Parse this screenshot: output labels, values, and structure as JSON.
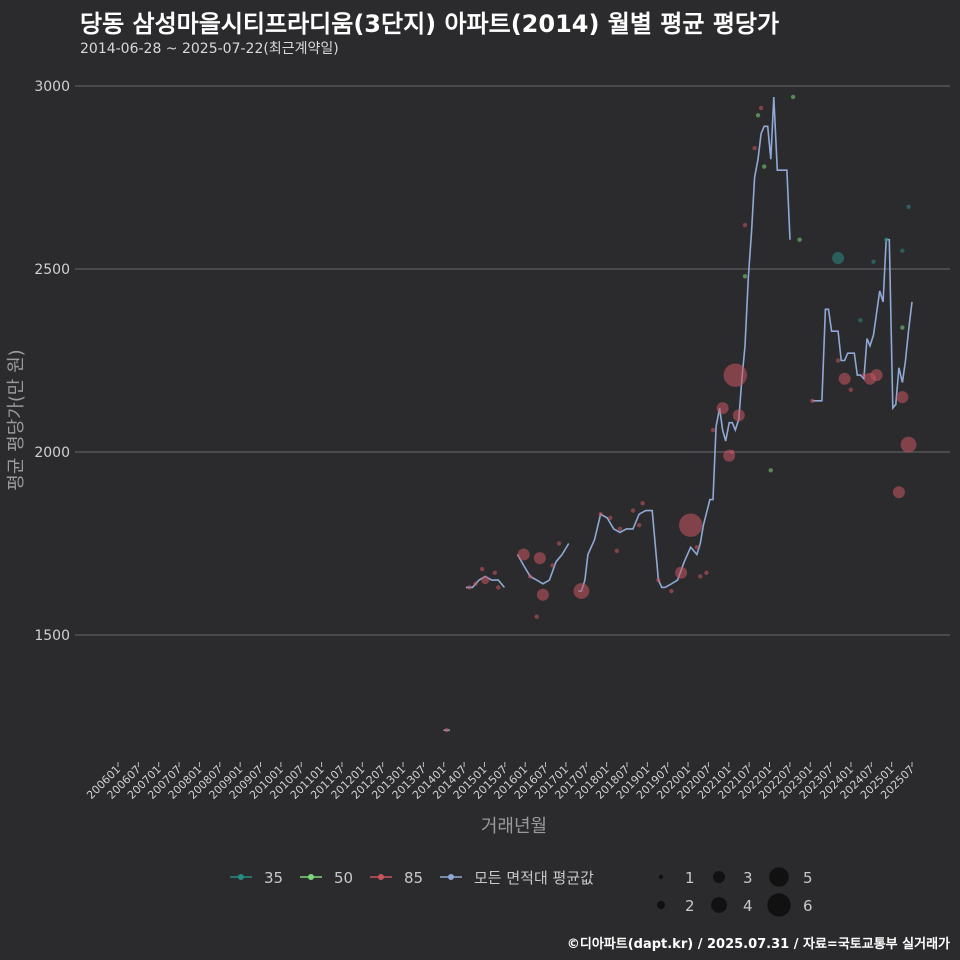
{
  "title": "당동 삼성마을시티프라디움(3단지) 아파트(2014) 월별 평균 평당가",
  "subtitle": "2014-06-28 ~ 2025-07-22(최근계약일)",
  "credit": "©디아파트(dapt.kr) / 2025.07.31 / 자료=국토교통부 실거래가",
  "colors": {
    "background": "#2b2b2d",
    "grid": "#6a6a6a",
    "s35": "#2a8a84",
    "s50": "#7dd87d",
    "s85": "#c95560",
    "avg": "#8fa9d6"
  },
  "chart_data": {
    "type": "line",
    "title": "당동 삼성마을시티프라디움(3단지) 아파트(2014) 월별 평균 평당가",
    "xlabel": "거래년월",
    "ylabel": "평균 평당가(만 원)",
    "ylim": [
      1160,
      3060
    ],
    "yticks": [
      1500,
      2000,
      2500,
      3000
    ],
    "xlim": [
      2006.0,
      2025.83
    ],
    "xticks": [
      "200601",
      "200607",
      "200701",
      "200707",
      "200801",
      "200807",
      "200901",
      "200907",
      "201001",
      "201007",
      "201101",
      "201107",
      "201201",
      "201207",
      "201301",
      "201307",
      "201401",
      "201407",
      "201501",
      "201507",
      "201601",
      "201607",
      "201701",
      "201707",
      "201801",
      "201807",
      "201901",
      "201907",
      "202001",
      "202007",
      "202101",
      "202107",
      "202201",
      "202207",
      "202301",
      "202307",
      "202401",
      "202407",
      "202501",
      "202507"
    ],
    "series": [
      {
        "name": "모든 면적대 평균값",
        "segments": [
          [
            [
              2014.46,
              1240
            ],
            [
              2014.62,
              1240
            ]
          ],
          [
            [
              2015.04,
              1630
            ],
            [
              2015.21,
              1630
            ],
            [
              2015.38,
              1650
            ],
            [
              2015.54,
              1660
            ],
            [
              2015.71,
              1650
            ],
            [
              2015.88,
              1650
            ],
            [
              2016.04,
              1630
            ]
          ],
          [
            [
              2016.38,
              1720
            ],
            [
              2016.54,
              1690
            ],
            [
              2016.71,
              1660
            ],
            [
              2016.88,
              1650
            ],
            [
              2017.04,
              1640
            ],
            [
              2017.21,
              1650
            ],
            [
              2017.38,
              1700
            ],
            [
              2017.54,
              1720
            ],
            [
              2017.71,
              1750
            ]
          ],
          [
            [
              2017.96,
              1620
            ],
            [
              2018.04,
              1620
            ],
            [
              2018.13,
              1650
            ],
            [
              2018.21,
              1720
            ],
            [
              2018.38,
              1760
            ],
            [
              2018.54,
              1830
            ],
            [
              2018.71,
              1820
            ],
            [
              2018.88,
              1790
            ],
            [
              2019.04,
              1780
            ],
            [
              2019.21,
              1790
            ],
            [
              2019.38,
              1790
            ],
            [
              2019.54,
              1830
            ],
            [
              2019.71,
              1840
            ],
            [
              2019.88,
              1840
            ],
            [
              2020.04,
              1650
            ],
            [
              2020.13,
              1630
            ],
            [
              2020.21,
              1630
            ],
            [
              2020.38,
              1640
            ],
            [
              2020.54,
              1650
            ],
            [
              2020.71,
              1700
            ],
            [
              2020.88,
              1740
            ],
            [
              2021.04,
              1720
            ],
            [
              2021.13,
              1750
            ],
            [
              2021.21,
              1800
            ],
            [
              2021.38,
              1870
            ],
            [
              2021.46,
              1870
            ],
            [
              2021.54,
              2070
            ],
            [
              2021.63,
              2120
            ],
            [
              2021.71,
              2060
            ],
            [
              2021.79,
              2030
            ],
            [
              2021.88,
              2080
            ],
            [
              2021.96,
              2080
            ],
            [
              2022.04,
              2060
            ],
            [
              2022.13,
              2090
            ],
            [
              2022.21,
              2200
            ],
            [
              2022.29,
              2290
            ],
            [
              2022.38,
              2480
            ],
            [
              2022.46,
              2600
            ],
            [
              2022.54,
              2750
            ],
            [
              2022.63,
              2800
            ],
            [
              2022.71,
              2870
            ],
            [
              2022.79,
              2890
            ],
            [
              2022.88,
              2890
            ],
            [
              2022.96,
              2800
            ],
            [
              2023.04,
              2970
            ],
            [
              2023.13,
              2770
            ],
            [
              2023.21,
              2770
            ],
            [
              2023.29,
              2770
            ],
            [
              2023.38,
              2770
            ],
            [
              2023.46,
              2580
            ]
          ],
          [
            [
              2024.04,
              2140
            ],
            [
              2024.13,
              2140
            ],
            [
              2024.21,
              2140
            ],
            [
              2024.29,
              2140
            ],
            [
              2024.38,
              2390
            ],
            [
              2024.46,
              2390
            ],
            [
              2024.54,
              2330
            ],
            [
              2024.63,
              2330
            ],
            [
              2024.71,
              2330
            ],
            [
              2024.79,
              2250
            ],
            [
              2024.88,
              2250
            ],
            [
              2024.96,
              2270
            ],
            [
              2025.04,
              2270
            ],
            [
              2025.13,
              2270
            ],
            [
              2025.21,
              2210
            ],
            [
              2025.29,
              2210
            ],
            [
              2025.38,
              2200
            ],
            [
              2025.46,
              2310
            ],
            [
              2025.54,
              2290
            ],
            [
              2025.63,
              2320
            ],
            [
              2025.71,
              2380
            ],
            [
              2025.79,
              2440
            ],
            [
              2025.88,
              2410
            ],
            [
              2025.96,
              2580
            ],
            [
              2026.04,
              2580
            ],
            [
              2026.13,
              2120
            ],
            [
              2026.21,
              2130
            ],
            [
              2026.29,
              2230
            ],
            [
              2026.38,
              2190
            ],
            [
              2026.46,
              2250
            ],
            [
              2026.54,
              2330
            ],
            [
              2026.63,
              2410
            ]
          ]
        ]
      },
      {
        "name": "35",
        "points": [
          [
            2024.71,
            2530,
            3
          ],
          [
            2025.96,
            2580,
            1
          ],
          [
            2026.38,
            2550,
            1
          ],
          [
            2026.54,
            2670,
            1
          ],
          [
            2025.29,
            2360,
            1
          ],
          [
            2025.63,
            2520,
            1
          ]
        ]
      },
      {
        "name": "50",
        "points": [
          [
            2022.96,
            1950,
            1
          ],
          [
            2022.79,
            2780,
            1
          ],
          [
            2022.63,
            2920,
            1
          ],
          [
            2022.29,
            2480,
            1
          ],
          [
            2023.54,
            2970,
            1
          ],
          [
            2023.71,
            2580,
            1
          ],
          [
            2026.38,
            2340,
            1
          ]
        ]
      },
      {
        "name": "85",
        "points": [
          [
            2014.54,
            1240,
            1
          ],
          [
            2015.13,
            1630,
            1
          ],
          [
            2015.29,
            1640,
            1
          ],
          [
            2015.46,
            1680,
            1
          ],
          [
            2015.54,
            1650,
            2
          ],
          [
            2015.79,
            1670,
            1
          ],
          [
            2015.88,
            1630,
            1
          ],
          [
            2016.54,
            1720,
            3
          ],
          [
            2016.71,
            1660,
            1
          ],
          [
            2016.88,
            1550,
            1
          ],
          [
            2016.96,
            1710,
            3
          ],
          [
            2017.04,
            1610,
            3
          ],
          [
            2017.29,
            1690,
            1
          ],
          [
            2017.46,
            1750,
            1
          ],
          [
            2018.04,
            1620,
            4
          ],
          [
            2018.54,
            1830,
            1
          ],
          [
            2018.79,
            1820,
            1
          ],
          [
            2018.96,
            1730,
            1
          ],
          [
            2019.04,
            1790,
            1
          ],
          [
            2019.38,
            1840,
            1
          ],
          [
            2019.54,
            1800,
            1
          ],
          [
            2019.63,
            1860,
            1
          ],
          [
            2020.04,
            1650,
            1
          ],
          [
            2020.38,
            1620,
            1
          ],
          [
            2020.63,
            1670,
            3
          ],
          [
            2020.88,
            1800,
            6
          ],
          [
            2021.04,
            1740,
            1
          ],
          [
            2021.13,
            1660,
            1
          ],
          [
            2021.29,
            1670,
            1
          ],
          [
            2021.46,
            2060,
            1
          ],
          [
            2021.71,
            2120,
            3
          ],
          [
            2021.88,
            1990,
            3
          ],
          [
            2021.96,
            2000,
            1
          ],
          [
            2022.04,
            2210,
            6
          ],
          [
            2022.13,
            2100,
            3
          ],
          [
            2022.29,
            2620,
            1
          ],
          [
            2022.54,
            2830,
            1
          ],
          [
            2022.71,
            2940,
            1
          ],
          [
            2024.04,
            2140,
            1
          ],
          [
            2024.71,
            2250,
            1
          ],
          [
            2024.88,
            2200,
            3
          ],
          [
            2025.04,
            2170,
            1
          ],
          [
            2025.38,
            2210,
            1
          ],
          [
            2025.54,
            2200,
            3
          ],
          [
            2025.71,
            2210,
            3
          ],
          [
            2026.38,
            2150,
            3
          ],
          [
            2026.29,
            1890,
            3
          ],
          [
            2026.54,
            2020,
            4
          ]
        ]
      }
    ],
    "legend": {
      "series": [
        "35",
        "50",
        "85",
        "모든 면적대 평균값"
      ],
      "size_values": [
        "1",
        "2",
        "3",
        "4",
        "5",
        "6"
      ]
    }
  }
}
